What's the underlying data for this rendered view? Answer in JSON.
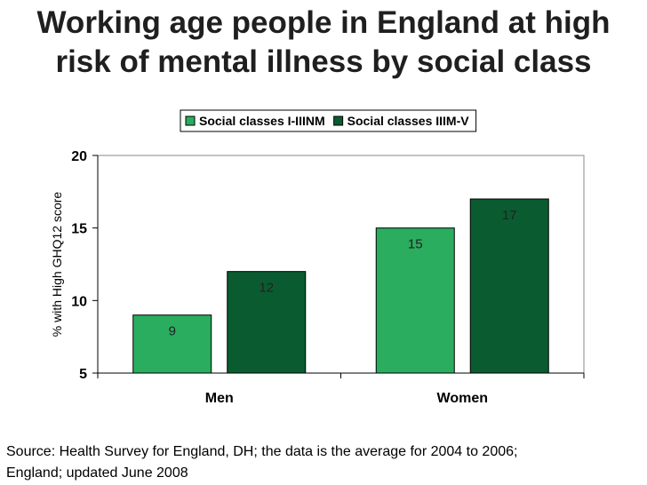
{
  "title_lines": [
    "Working age people in England at high",
    "risk of mental illness by social class"
  ],
  "source_lines": [
    "Source: Health Survey for England, DH; the data is the average for 2004 to 2006;",
    "England; updated June 2008"
  ],
  "chart_data": {
    "type": "bar",
    "title": "Working age people in England at high risk of mental illness by social class",
    "categories": [
      "Men",
      "Women"
    ],
    "series": [
      {
        "name": "Social classes I-IIINM",
        "values": [
          9,
          15
        ],
        "color": "#2aad5e"
      },
      {
        "name": "Social classes IIIM-V",
        "values": [
          12,
          17
        ],
        "color": "#0a5c30"
      }
    ],
    "ylabel": "%  with High GHQ12 score",
    "xlabel": "",
    "ylim": [
      5,
      20
    ],
    "yticks": [
      5,
      10,
      15,
      20
    ],
    "grid": false,
    "legend": "top-center"
  }
}
